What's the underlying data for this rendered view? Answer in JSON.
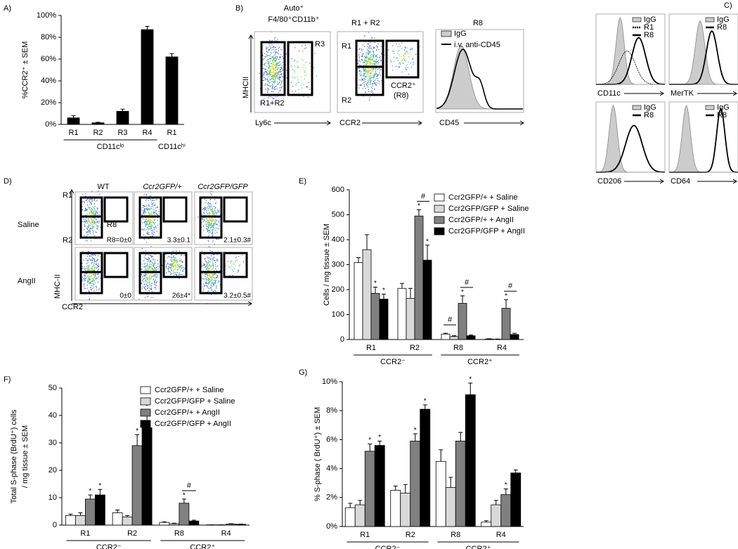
{
  "chart_data": [
    {
      "type": "bar",
      "label": "A)",
      "ylabel": "%CCR2⁺ ± SEM",
      "categories": [
        "R1",
        "R2",
        "R3",
        "R4",
        "R1"
      ],
      "values": [
        6,
        1.5,
        12,
        87,
        62
      ],
      "errors": [
        2,
        0.5,
        2,
        3,
        3
      ],
      "color": "#000000",
      "ylim": [
        0,
        100
      ],
      "yticks": [
        {
          "value": 0,
          "label": "0%"
        },
        {
          "value": 20,
          "label": "20%"
        },
        {
          "value": 40,
          "label": "40%"
        },
        {
          "value": 60,
          "label": "60%"
        },
        {
          "value": 80,
          "label": "80%"
        },
        {
          "value": 100,
          "label": "100%"
        }
      ],
      "groups": [
        {
          "label": "CD11cˡᵒ",
          "categories": [
            0,
            3
          ]
        },
        {
          "label": "CD11cʰⁱ",
          "categories": [
            4,
            4
          ]
        }
      ]
    },
    {
      "type": "bar",
      "label": "E)",
      "ylabel": "Cells / mg tissue ± SEM",
      "categories": [
        "R1",
        "R2",
        "R8",
        "R4"
      ],
      "series": [
        {
          "name": "Ccr2GFP/+ + Saline",
          "color": "#ffffff",
          "values": [
            308,
            205,
            22,
            2
          ],
          "errors": [
            20,
            20,
            3,
            1
          ],
          "significance": [
            null,
            null,
            null,
            null
          ]
        },
        {
          "name": "Ccr2GFP/GFP + Saline",
          "color": "#d9d9d9",
          "values": [
            360,
            165,
            12,
            1
          ],
          "errors": [
            60,
            40,
            3,
            1
          ],
          "significance": [
            null,
            null,
            null,
            null
          ]
        },
        {
          "name": "Ccr2GFP/+ + AngII",
          "color": "#808080",
          "values": [
            185,
            495,
            145,
            125
          ],
          "errors": [
            25,
            25,
            30,
            35
          ],
          "significance": [
            "*",
            "*",
            "*",
            "*"
          ]
        },
        {
          "name": "Ccr2GFP/GFP + AngII",
          "color": "#000000",
          "values": [
            162,
            318,
            15,
            20
          ],
          "errors": [
            20,
            60,
            3,
            5
          ],
          "significance": [
            "*",
            "*",
            null,
            null
          ]
        }
      ],
      "brackets": [
        {
          "label": "#",
          "category": 1,
          "series": [
            2,
            3
          ]
        },
        {
          "label": "#",
          "category": 2,
          "series": [
            0,
            1
          ]
        },
        {
          "label": "#",
          "category": 2,
          "series": [
            2,
            3
          ]
        },
        {
          "label": "#",
          "category": 3,
          "series": [
            2,
            3
          ]
        }
      ],
      "ylim": [
        0,
        600
      ],
      "yticks": [
        0,
        100,
        200,
        300,
        400,
        500,
        600
      ],
      "groups": [
        {
          "label": "CCR2⁻",
          "categories": [
            0,
            1
          ]
        },
        {
          "label": "CCR2⁺",
          "categories": [
            2,
            3
          ]
        }
      ]
    },
    {
      "type": "bar",
      "label": "F)",
      "ylabel": [
        "Total S-phase (BrdU⁺) cells",
        "/ mg tissue ± SEM"
      ],
      "categories": [
        "R1",
        "R2",
        "R8",
        "R4"
      ],
      "series": [
        {
          "name": "Ccr2GFP/+ + Saline",
          "color": "#ffffff",
          "values": [
            3.5,
            4.5,
            1,
            0.1
          ],
          "errors": [
            0.5,
            1,
            0.2,
            0
          ],
          "significance": [
            null,
            null,
            null,
            null
          ]
        },
        {
          "name": "Ccr2GFP/GFP + Saline",
          "color": "#d9d9d9",
          "values": [
            3.5,
            3,
            0.5,
            0.1
          ],
          "errors": [
            1,
            0.5,
            0.2,
            0
          ],
          "significance": [
            null,
            null,
            null,
            null
          ]
        },
        {
          "name": "Ccr2GFP/+ + AngII",
          "color": "#808080",
          "values": [
            9.5,
            29,
            8,
            0.4
          ],
          "errors": [
            1.5,
            4,
            1.5,
            0.1
          ],
          "significance": [
            "*",
            "*",
            "*",
            null
          ]
        },
        {
          "name": "Ccr2GFP/GFP + AngII",
          "color": "#000000",
          "values": [
            11,
            35.5,
            1.5,
            0.3
          ],
          "errors": [
            2,
            6.5,
            0.3,
            0.1
          ],
          "significance": [
            "*",
            "*",
            null,
            null
          ]
        }
      ],
      "brackets": [
        {
          "label": "#",
          "category": 2,
          "series": [
            2,
            3
          ]
        }
      ],
      "ylim": [
        0,
        50
      ],
      "yticks": [
        0,
        10,
        20,
        30,
        40,
        50
      ],
      "groups": [
        {
          "label": "CCR2⁻",
          "categories": [
            0,
            1
          ]
        },
        {
          "label": "CCR2⁺",
          "categories": [
            2,
            3
          ]
        }
      ]
    },
    {
      "type": "bar",
      "label": "G)",
      "ylabel": "% S-phase ( BrdU⁺) ± SEM",
      "categories": [
        "R1",
        "R2",
        "R8",
        "R4"
      ],
      "series": [
        {
          "name": "Ccr2GFP/+ + Saline",
          "color": "#ffffff",
          "values": [
            1.3,
            2.5,
            4.5,
            0.3
          ],
          "errors": [
            0.3,
            0.3,
            0.8,
            0.1
          ],
          "significance": [
            null,
            null,
            null,
            null
          ]
        },
        {
          "name": "Ccr2GFP/GFP + Saline",
          "color": "#d9d9d9",
          "values": [
            1.5,
            2.3,
            2.7,
            1.5
          ],
          "errors": [
            0.3,
            0.6,
            0.7,
            0.3
          ],
          "significance": [
            null,
            null,
            null,
            null
          ]
        },
        {
          "name": "Ccr2GFP/+ + AngII",
          "color": "#808080",
          "values": [
            5.2,
            5.9,
            5.9,
            2.2
          ],
          "errors": [
            0.5,
            0.5,
            0.6,
            0.4
          ],
          "significance": [
            "*",
            "*",
            null,
            "*"
          ]
        },
        {
          "name": "Ccr2GFP/GFP + AngII",
          "color": "#000000",
          "values": [
            5.6,
            8.1,
            9.1,
            3.7
          ],
          "errors": [
            0.3,
            0.3,
            0.8,
            0.2
          ],
          "significance": [
            "*",
            "*",
            "*",
            null
          ]
        }
      ],
      "ylim": [
        0,
        10
      ],
      "yticks": [
        {
          "value": 0,
          "label": "0%"
        },
        {
          "value": 2,
          "label": "2%"
        },
        {
          "value": 4,
          "label": "4%"
        },
        {
          "value": 6,
          "label": "6%"
        },
        {
          "value": 8,
          "label": "8%"
        },
        {
          "value": 10,
          "label": "10%"
        }
      ],
      "groups": [
        {
          "label": "CCR2⁻",
          "categories": [
            0,
            1
          ]
        },
        {
          "label": "CCR2⁺",
          "categories": [
            2,
            3
          ]
        }
      ]
    }
  ],
  "flow": {
    "B": {
      "label": "B)",
      "plot1": {
        "title": [
          "Auto⁺",
          "F4/80⁺CD11b⁺"
        ],
        "gates": [
          "R3",
          "R1+R2"
        ],
        "ylabel": "MHCII",
        "xlabel": "Ly6c"
      },
      "plot2": {
        "title": "R1 + R2",
        "gates": [
          "R1",
          "R2",
          "CCR2⁺",
          "(R8)"
        ],
        "xlabel": "CCR2"
      },
      "plot3": {
        "title": "R8",
        "legend": [
          "IgG",
          "i.v. anti-CD45"
        ],
        "xlabel": "CD45"
      }
    },
    "C": {
      "label": "C)",
      "plots": [
        {
          "legend": [
            "IgG",
            "R1",
            "R8"
          ],
          "xlabel": "CD11c"
        },
        {
          "legend": [
            "IgG",
            "R8"
          ],
          "xlabel": "MerTK"
        },
        {
          "legend": [
            "IgG",
            "R8"
          ],
          "xlabel": "CD206"
        },
        {
          "legend": [
            "IgG",
            "R8"
          ],
          "xlabel": "CD64"
        }
      ]
    },
    "D": {
      "label": "D)",
      "columns": [
        "WT",
        "Ccr2GFP/+",
        "Ccr2GFP/GFP"
      ],
      "rows": [
        "Saline",
        "AngII"
      ],
      "gates": [
        "R1",
        "R2",
        "R8"
      ],
      "ylabel": "MHC-II",
      "xlabel": "CCR2",
      "counts": [
        [
          "R8=0±0",
          "3.3±0.1",
          "2.1±0.3#"
        ],
        [
          "0±0",
          "26±4*",
          "3.2±0.5#"
        ]
      ]
    }
  }
}
